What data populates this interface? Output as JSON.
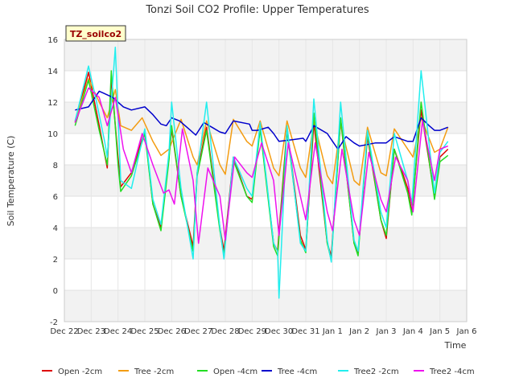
{
  "chart_data": {
    "type": "line",
    "title": "Tonzi Soil CO2 Profile: Upper Temperatures",
    "xlabel": "Time",
    "ylabel": "Soil Temperature (C)",
    "ylim": [
      -2,
      16
    ],
    "y_ticks": [
      -2,
      0,
      2,
      4,
      6,
      8,
      10,
      12,
      14,
      16
    ],
    "xlim": [
      0,
      15
    ],
    "x_tick_labels": [
      "Dec 22",
      "Dec 23",
      "Dec 24",
      "Dec 25",
      "Dec 26",
      "Dec 27",
      "Dec 28",
      "Dec 29",
      "Dec 30",
      "Dec 31",
      "Jan 1",
      "Jan 2",
      "Jan 3",
      "Jan 4",
      "Jan 5",
      "Jan 6"
    ],
    "x_unit": "days since Dec 22",
    "background_bands": true,
    "legend_position": "bottom",
    "badge": "TZ_soilco2",
    "series": [
      {
        "name": "Open -2cm",
        "color": "#dd0000",
        "x": [
          0.4,
          0.9,
          1.3,
          1.6,
          1.75,
          2.0,
          2.1,
          2.5,
          3.0,
          3.3,
          3.6,
          3.9,
          4.0,
          4.35,
          4.8,
          4.95,
          5.3,
          5.8,
          5.95,
          6.3,
          6.8,
          7.0,
          7.3,
          7.8,
          7.95,
          8.3,
          8.8,
          9.0,
          9.3,
          9.8,
          9.95,
          10.3,
          10.8,
          10.95,
          11.3,
          11.8,
          12.0,
          12.3,
          12.8,
          12.95,
          13.3,
          13.8,
          14.0,
          14.3
        ],
        "values": [
          10.7,
          13.9,
          10.5,
          7.8,
          13.5,
          8.5,
          6.6,
          7.5,
          10.2,
          5.5,
          4.0,
          8.5,
          10.3,
          6.0,
          2.8,
          7.5,
          10.4,
          4.0,
          2.5,
          8.5,
          6.0,
          5.8,
          10.4,
          3.0,
          2.5,
          10.4,
          3.5,
          2.6,
          10.7,
          3.0,
          2.2,
          10.9,
          3.0,
          2.4,
          9.8,
          4.5,
          3.3,
          9.0,
          6.5,
          5.0,
          11.5,
          6.0,
          8.5,
          9.0
        ]
      },
      {
        "name": "Tree -2cm",
        "color": "#f39c12",
        "x": [
          0.4,
          0.9,
          1.3,
          1.6,
          1.9,
          2.1,
          2.5,
          2.9,
          3.3,
          3.6,
          3.9,
          4.35,
          4.8,
          4.95,
          5.3,
          5.8,
          6.0,
          6.3,
          6.8,
          7.0,
          7.3,
          7.8,
          8.0,
          8.3,
          8.8,
          9.0,
          9.3,
          9.8,
          10.0,
          10.3,
          10.8,
          11.0,
          11.3,
          11.8,
          12.0,
          12.3,
          12.8,
          13.0,
          13.3,
          13.8,
          14.0,
          14.3
        ],
        "values": [
          10.8,
          13.5,
          12.0,
          11.0,
          12.8,
          10.5,
          10.2,
          11.0,
          9.5,
          8.6,
          9.0,
          10.9,
          8.5,
          8.0,
          10.8,
          8.0,
          7.4,
          10.9,
          9.5,
          9.2,
          10.8,
          7.8,
          7.3,
          10.8,
          7.8,
          7.2,
          10.8,
          7.3,
          6.8,
          10.6,
          7.0,
          6.7,
          10.4,
          7.5,
          7.3,
          10.3,
          9.0,
          8.5,
          11.0,
          8.8,
          9.0,
          10.4
        ]
      },
      {
        "name": "Open -4cm",
        "color": "#22dd22",
        "x": [
          0.4,
          0.9,
          1.3,
          1.6,
          1.75,
          2.0,
          2.1,
          2.5,
          3.0,
          3.3,
          3.6,
          3.9,
          4.0,
          4.35,
          4.8,
          4.95,
          5.3,
          5.8,
          5.95,
          6.3,
          6.8,
          7.0,
          7.3,
          7.8,
          7.95,
          8.3,
          8.8,
          9.0,
          9.3,
          9.8,
          9.95,
          10.3,
          10.8,
          10.95,
          11.3,
          11.8,
          12.0,
          12.3,
          12.8,
          12.95,
          13.3,
          13.8,
          14.0,
          14.3
        ],
        "values": [
          10.5,
          13.4,
          10.2,
          8.0,
          14.0,
          8.0,
          6.3,
          7.3,
          10.0,
          5.5,
          3.8,
          8.3,
          10.5,
          6.0,
          2.5,
          7.3,
          10.2,
          3.8,
          2.2,
          8.3,
          6.0,
          5.6,
          10.3,
          2.8,
          2.2,
          10.2,
          3.2,
          2.4,
          11.3,
          3.0,
          1.9,
          11.0,
          3.0,
          2.2,
          10.0,
          4.5,
          3.5,
          9.0,
          6.2,
          4.8,
          12.0,
          5.8,
          8.2,
          8.6
        ]
      },
      {
        "name": "Tree -4cm",
        "color": "#0000cc",
        "x": [
          0.4,
          0.9,
          1.3,
          1.8,
          2.2,
          2.5,
          3.0,
          3.3,
          3.6,
          3.8,
          4.0,
          4.3,
          4.7,
          4.9,
          5.2,
          5.5,
          5.8,
          6.0,
          6.3,
          6.9,
          7.0,
          7.2,
          7.6,
          7.8,
          8.0,
          8.5,
          8.9,
          9.0,
          9.3,
          9.8,
          10.0,
          10.2,
          10.5,
          10.8,
          11.0,
          11.3,
          11.6,
          11.8,
          12.0,
          12.3,
          12.8,
          13.0,
          13.3,
          13.6,
          13.8,
          14.0,
          14.3
        ],
        "values": [
          11.5,
          11.7,
          12.7,
          12.3,
          11.7,
          11.5,
          11.7,
          11.2,
          10.6,
          10.5,
          11.0,
          10.8,
          10.2,
          9.9,
          10.7,
          10.4,
          10.1,
          10.0,
          10.8,
          10.6,
          10.2,
          10.2,
          10.4,
          10.0,
          9.5,
          9.6,
          9.7,
          9.5,
          10.5,
          10.0,
          9.5,
          9.0,
          9.8,
          9.4,
          9.2,
          9.3,
          9.4,
          9.4,
          9.4,
          9.8,
          9.5,
          9.5,
          11.0,
          10.5,
          10.2,
          10.2,
          10.4
        ]
      },
      {
        "name": "Tree2 -2cm",
        "color": "#22eeee",
        "x": [
          0.4,
          0.9,
          1.2,
          1.5,
          1.6,
          1.9,
          2.1,
          2.5,
          3.0,
          3.3,
          3.6,
          3.9,
          4.0,
          4.35,
          4.8,
          4.95,
          5.3,
          5.8,
          5.95,
          6.3,
          6.8,
          7.0,
          7.3,
          7.8,
          7.95,
          8.0,
          8.3,
          8.8,
          9.0,
          9.3,
          9.8,
          9.95,
          10.3,
          10.8,
          10.95,
          11.3,
          11.8,
          12.0,
          12.3,
          12.8,
          12.95,
          13.3,
          13.8,
          14.0,
          14.3
        ],
        "values": [
          10.8,
          14.3,
          12.0,
          9.5,
          8.5,
          15.5,
          7.0,
          6.5,
          10.3,
          5.8,
          4.2,
          8.8,
          12.0,
          6.5,
          2.0,
          7.5,
          12.0,
          4.0,
          2.0,
          8.5,
          6.5,
          6.0,
          10.7,
          3.0,
          2.5,
          -0.5,
          10.5,
          3.0,
          2.5,
          12.2,
          3.2,
          1.8,
          12.0,
          3.2,
          2.5,
          10.2,
          5.0,
          4.0,
          10.0,
          7.0,
          5.5,
          14.0,
          6.2,
          8.8,
          9.5
        ]
      },
      {
        "name": "Tree2 -4cm",
        "color": "#ee11ee",
        "x": [
          0.4,
          0.9,
          1.3,
          1.6,
          1.9,
          2.2,
          2.5,
          2.9,
          3.3,
          3.7,
          3.9,
          4.1,
          4.4,
          4.8,
          5.0,
          5.35,
          5.8,
          6.0,
          6.35,
          6.8,
          7.0,
          7.35,
          7.8,
          8.0,
          8.35,
          8.8,
          9.0,
          9.35,
          9.8,
          10.0,
          10.35,
          10.8,
          11.0,
          11.35,
          11.8,
          12.0,
          12.35,
          12.8,
          13.0,
          13.35,
          13.8,
          14.0,
          14.3
        ],
        "values": [
          10.7,
          12.9,
          12.3,
          10.5,
          12.3,
          9.0,
          7.5,
          10.0,
          8.0,
          6.2,
          6.4,
          5.5,
          10.3,
          7.0,
          3.0,
          7.8,
          6.0,
          3.2,
          8.5,
          7.5,
          7.2,
          9.4,
          7.0,
          3.5,
          9.4,
          6.0,
          4.5,
          9.4,
          5.0,
          3.8,
          9.0,
          4.5,
          3.5,
          8.8,
          5.8,
          5.0,
          8.5,
          7.0,
          5.0,
          10.8,
          7.0,
          9.0,
          9.2
        ]
      }
    ]
  }
}
